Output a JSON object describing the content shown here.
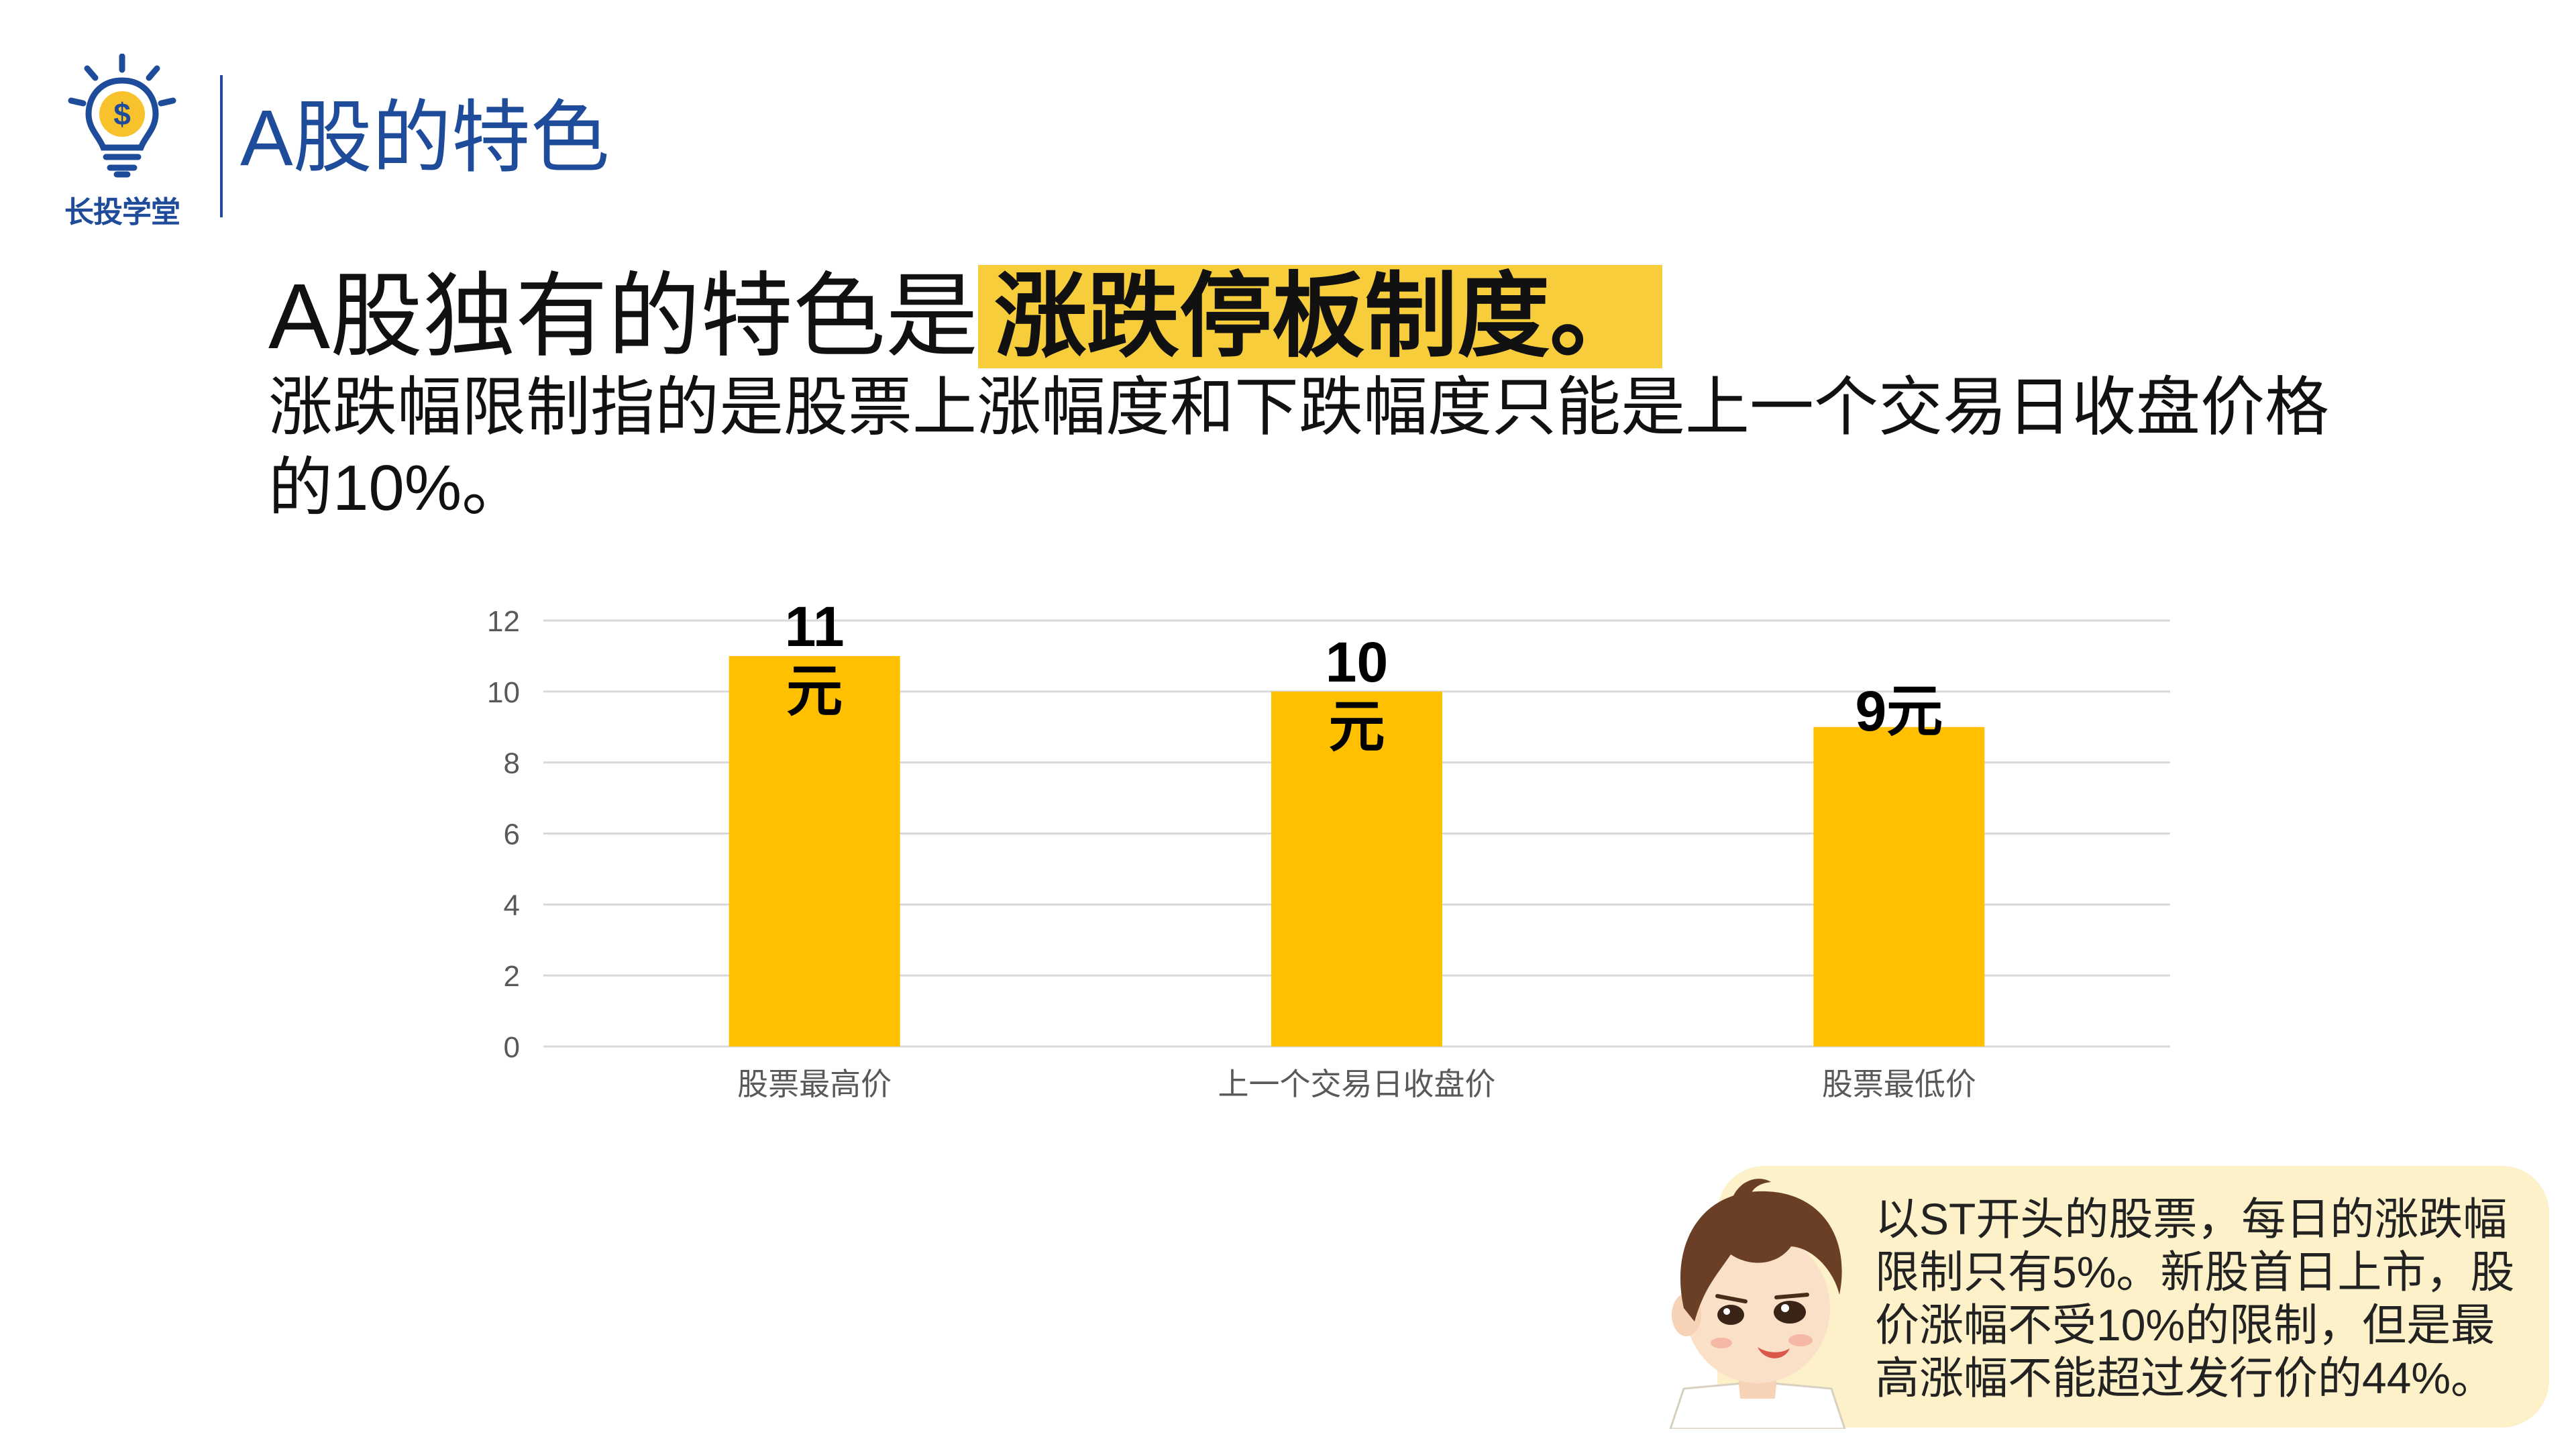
{
  "brand": {
    "name": "长投学堂"
  },
  "header": {
    "title": "A股的特色"
  },
  "headline": {
    "prefix": "A股独有的特色是",
    "highlight": "涨跌停板制度。"
  },
  "description": "涨跌幅限制指的是股票上涨幅度和下跌幅度只能是上一个交易日收盘价格的10%。",
  "note": "以ST开头的股票，每日的涨跌幅限制只有5%。新股首日上市，股价涨幅不受10%的限制，但是最高涨幅不能超过发行价的44%。",
  "colors": {
    "accent": "#1e4b9a",
    "bar": "#ffc000",
    "highlight": "#f7cd3c",
    "note_bg": "#fdf1c9"
  },
  "chart_data": {
    "type": "bar",
    "categories": [
      "股票最高价",
      "上一个交易日收盘价",
      "股票最低价"
    ],
    "values": [
      11,
      10,
      9
    ],
    "data_labels": [
      [
        "11",
        "元"
      ],
      [
        "10",
        "元"
      ],
      [
        "9元"
      ]
    ],
    "ylim": [
      0,
      12
    ],
    "yticks": [
      "0",
      "2",
      "4",
      "6",
      "8",
      "10",
      "12"
    ],
    "grid": true,
    "title": "",
    "xlabel": "",
    "ylabel": ""
  }
}
